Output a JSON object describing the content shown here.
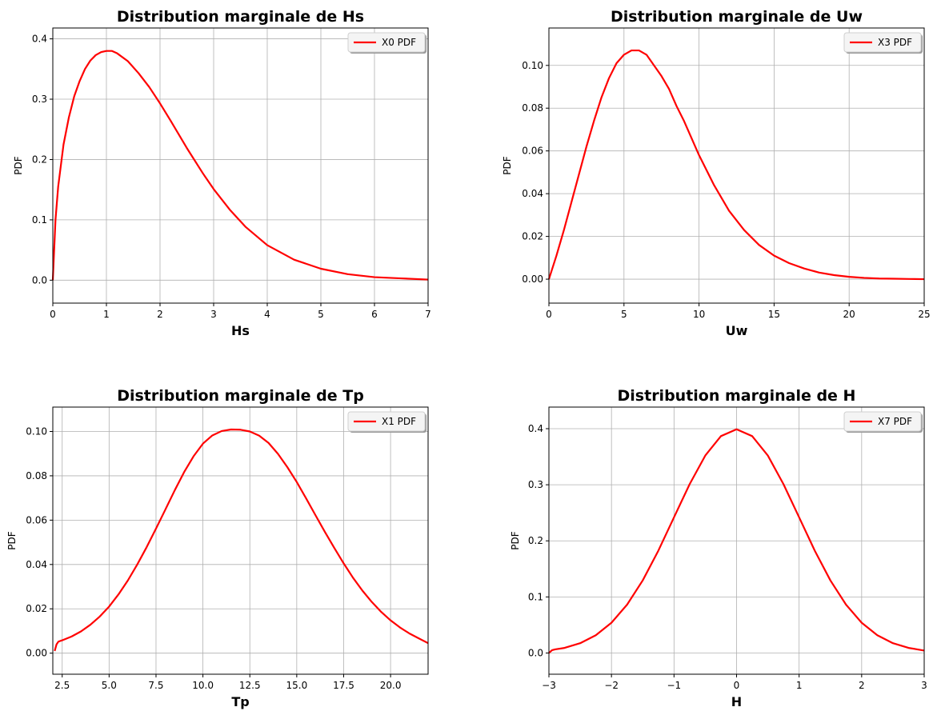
{
  "chart_data": [
    {
      "type": "line",
      "title": "Distribution marginale de Hs",
      "xlabel": "Hs",
      "ylabel": "PDF",
      "xlim": [
        0,
        7
      ],
      "ylim": [
        -0.038,
        0.418
      ],
      "xticks": [
        0,
        1,
        2,
        3,
        4,
        5,
        6,
        7
      ],
      "xtick_labels": [
        "0",
        "1",
        "2",
        "3",
        "4",
        "5",
        "6",
        "7"
      ],
      "yticks": [
        0.0,
        0.1,
        0.2,
        0.3,
        0.4
      ],
      "ytick_labels": [
        "0.0",
        "0.1",
        "0.2",
        "0.3",
        "0.4"
      ],
      "grid": true,
      "legend_position": "top-right",
      "series": [
        {
          "name": "X0 PDF",
          "color": "#ff0000",
          "x": [
            0,
            0.05,
            0.1,
            0.2,
            0.3,
            0.4,
            0.5,
            0.6,
            0.7,
            0.8,
            0.9,
            1.0,
            1.1,
            1.2,
            1.4,
            1.6,
            1.8,
            2.0,
            2.2,
            2.5,
            2.8,
            3.0,
            3.3,
            3.6,
            4.0,
            4.5,
            5.0,
            5.5,
            6.0,
            6.5,
            7.0
          ],
          "y": [
            0.0,
            0.1,
            0.155,
            0.225,
            0.27,
            0.305,
            0.33,
            0.35,
            0.364,
            0.373,
            0.378,
            0.38,
            0.38,
            0.376,
            0.363,
            0.343,
            0.32,
            0.293,
            0.264,
            0.219,
            0.177,
            0.151,
            0.117,
            0.088,
            0.058,
            0.034,
            0.019,
            0.01,
            0.005,
            0.003,
            0.001
          ]
        }
      ]
    },
    {
      "type": "line",
      "title": "Distribution marginale de Uw",
      "xlabel": "Uw",
      "ylabel": "PDF",
      "xlim": [
        0,
        25
      ],
      "ylim": [
        -0.0112,
        0.1175
      ],
      "xticks": [
        0,
        5,
        10,
        15,
        20,
        25
      ],
      "xtick_labels": [
        "0",
        "5",
        "10",
        "15",
        "20",
        "25"
      ],
      "yticks": [
        0.0,
        0.02,
        0.04,
        0.06,
        0.08,
        0.1
      ],
      "ytick_labels": [
        "0.00",
        "0.02",
        "0.04",
        "0.06",
        "0.08",
        "0.10"
      ],
      "grid": true,
      "legend_position": "top-right",
      "series": [
        {
          "name": "X3 PDF",
          "color": "#ff0000",
          "x": [
            0,
            0.5,
            1,
            1.5,
            2,
            2.5,
            3,
            3.5,
            4,
            4.5,
            5,
            5.5,
            6,
            6.5,
            7,
            7.5,
            8,
            8.5,
            9,
            10,
            11,
            12,
            13,
            14,
            15,
            16,
            17,
            18,
            19,
            20,
            21,
            22,
            23,
            24,
            25
          ],
          "y": [
            0.0,
            0.011,
            0.023,
            0.036,
            0.049,
            0.062,
            0.074,
            0.085,
            0.094,
            0.101,
            0.105,
            0.107,
            0.107,
            0.105,
            0.1,
            0.095,
            0.089,
            0.081,
            0.074,
            0.058,
            0.044,
            0.032,
            0.023,
            0.016,
            0.011,
            0.0075,
            0.005,
            0.0031,
            0.0019,
            0.0011,
            0.0006,
            0.0003,
            0.0002,
            0.0001,
            0.0
          ]
        }
      ]
    },
    {
      "type": "line",
      "title": "Distribution marginale de Tp",
      "xlabel": "Tp",
      "ylabel": "PDF",
      "xlim": [
        2,
        22
      ],
      "ylim": [
        -0.0095,
        0.111
      ],
      "xticks": [
        2.5,
        5.0,
        7.5,
        10.0,
        12.5,
        15.0,
        17.5,
        20.0
      ],
      "xtick_labels": [
        "2.5",
        "5.0",
        "7.5",
        "10.0",
        "12.5",
        "15.0",
        "17.5",
        "20.0"
      ],
      "yticks": [
        0.0,
        0.02,
        0.04,
        0.06,
        0.08,
        0.1
      ],
      "ytick_labels": [
        "0.00",
        "0.02",
        "0.04",
        "0.06",
        "0.08",
        "0.10"
      ],
      "grid": true,
      "legend_position": "top-right",
      "series": [
        {
          "name": "X1 PDF",
          "color": "#ff0000",
          "x": [
            2.1,
            2.2,
            2.3,
            2.5,
            3,
            3.5,
            4,
            4.5,
            5,
            5.5,
            6,
            6.5,
            7,
            7.5,
            8,
            8.5,
            9,
            9.5,
            10,
            10.5,
            11,
            11.5,
            12,
            12.5,
            13,
            13.5,
            14,
            14.5,
            15,
            15.5,
            16,
            16.5,
            17,
            17.5,
            18,
            18.5,
            19,
            19.5,
            20,
            20.5,
            21,
            21.5,
            22
          ],
          "y": [
            0.001,
            0.004,
            0.0052,
            0.0058,
            0.0075,
            0.0098,
            0.0128,
            0.0165,
            0.021,
            0.0265,
            0.0328,
            0.04,
            0.0478,
            0.0562,
            0.0648,
            0.0735,
            0.0817,
            0.0888,
            0.0945,
            0.0982,
            0.1002,
            0.1009,
            0.1008,
            0.1,
            0.0981,
            0.0948,
            0.0899,
            0.0839,
            0.0772,
            0.0698,
            0.0622,
            0.0547,
            0.0475,
            0.0405,
            0.034,
            0.0282,
            0.0231,
            0.0186,
            0.0148,
            0.0116,
            0.0089,
            0.0067,
            0.0045
          ]
        }
      ]
    },
    {
      "type": "line",
      "title": "Distribution marginale de H",
      "xlabel": "H",
      "ylabel": "PDF",
      "xlim": [
        -3,
        3
      ],
      "ylim": [
        -0.0378,
        0.4385
      ],
      "xticks": [
        -3,
        -2,
        -1,
        0,
        1,
        2,
        3
      ],
      "xtick_labels": [
        "−3",
        "−2",
        "−1",
        "0",
        "1",
        "2",
        "3"
      ],
      "yticks": [
        0.0,
        0.1,
        0.2,
        0.3,
        0.4
      ],
      "ytick_labels": [
        "0.0",
        "0.1",
        "0.2",
        "0.3",
        "0.4"
      ],
      "grid": true,
      "legend_position": "top-right",
      "series": [
        {
          "name": "X7 PDF",
          "color": "#ff0000",
          "x": [
            -3.0,
            -2.95,
            -2.9,
            -2.75,
            -2.5,
            -2.25,
            -2.0,
            -1.75,
            -1.5,
            -1.25,
            -1.0,
            -0.75,
            -0.5,
            -0.25,
            0.0,
            0.25,
            0.5,
            0.75,
            1.0,
            1.25,
            1.5,
            1.75,
            2.0,
            2.25,
            2.5,
            2.75,
            3.0
          ],
          "y": [
            0.0,
            0.005,
            0.0065,
            0.0091,
            0.0175,
            0.0317,
            0.054,
            0.0863,
            0.1295,
            0.1826,
            0.242,
            0.3011,
            0.3521,
            0.3867,
            0.3989,
            0.3867,
            0.3521,
            0.3011,
            0.242,
            0.1826,
            0.1295,
            0.0863,
            0.054,
            0.0317,
            0.0175,
            0.0091,
            0.0044
          ]
        }
      ]
    }
  ]
}
